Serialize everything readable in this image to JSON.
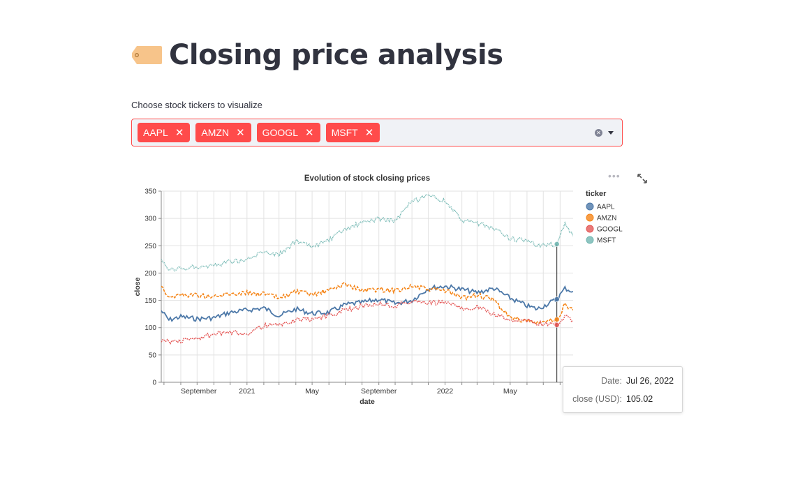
{
  "page": {
    "title": "Closing price analysis"
  },
  "multiselect": {
    "label": "Choose stock tickers to visualize",
    "selected": [
      "AAPL",
      "AMZN",
      "GOOGL",
      "MSFT"
    ],
    "remove_glyph": "✕",
    "clear_glyph": "✕"
  },
  "chart_toolbar": {
    "menu_glyph": "•••"
  },
  "colors": {
    "accent": "#ff4b4b",
    "AAPL": "#4c78a8",
    "AMZN": "#f58518",
    "GOOGL": "#e45756",
    "MSFT": "#72b7b2"
  },
  "tooltip": {
    "date_label": "Date:",
    "date_value": "Jul 26, 2022",
    "value_label": "close (USD):",
    "value_value": "105.02"
  },
  "chart_data": {
    "type": "line",
    "title": "Evolution of stock closing prices",
    "xlabel": "date",
    "ylabel": "close",
    "xlim": [
      "2020-07-27",
      "2022-08-25"
    ],
    "ylim": [
      0,
      350
    ],
    "yticks": [
      0,
      50,
      100,
      150,
      200,
      250,
      300,
      350
    ],
    "xticks": [
      {
        "date": "2020-09-01",
        "label": "September"
      },
      {
        "date": "2021-01-01",
        "label": "2021"
      },
      {
        "date": "2021-05-01",
        "label": "May"
      },
      {
        "date": "2021-09-01",
        "label": "September"
      },
      {
        "date": "2022-01-01",
        "label": "2022"
      },
      {
        "date": "2022-05-01",
        "label": "May"
      }
    ],
    "grid": true,
    "legend": {
      "title": "ticker",
      "placement": "right"
    },
    "rule_date": "2022-07-26",
    "series": [
      {
        "name": "AAPL",
        "dash": "solid",
        "rule_value": 152,
        "points": [
          [
            "2020-07-27",
            131
          ],
          [
            "2020-08-10",
            114
          ],
          [
            "2020-09-01",
            120
          ],
          [
            "2020-10-01",
            116
          ],
          [
            "2020-11-01",
            118
          ],
          [
            "2020-12-01",
            128
          ],
          [
            "2021-01-01",
            132
          ],
          [
            "2021-02-01",
            136
          ],
          [
            "2021-03-01",
            122
          ],
          [
            "2021-04-01",
            134
          ],
          [
            "2021-05-01",
            126
          ],
          [
            "2021-06-01",
            128
          ],
          [
            "2021-07-01",
            142
          ],
          [
            "2021-08-01",
            146
          ],
          [
            "2021-09-01",
            152
          ],
          [
            "2021-10-01",
            144
          ],
          [
            "2021-11-01",
            150
          ],
          [
            "2021-12-01",
            172
          ],
          [
            "2022-01-01",
            176
          ],
          [
            "2022-02-01",
            170
          ],
          [
            "2022-03-01",
            164
          ],
          [
            "2022-04-01",
            172
          ],
          [
            "2022-05-01",
            154
          ],
          [
            "2022-06-01",
            140
          ],
          [
            "2022-06-20",
            134
          ],
          [
            "2022-07-26",
            152
          ],
          [
            "2022-08-10",
            172
          ],
          [
            "2022-08-25",
            166
          ]
        ]
      },
      {
        "name": "AMZN",
        "dash": "dashed",
        "rule_value": 115,
        "points": [
          [
            "2020-07-27",
            178
          ],
          [
            "2020-08-10",
            156
          ],
          [
            "2020-09-01",
            160
          ],
          [
            "2020-10-01",
            160
          ],
          [
            "2020-11-01",
            156
          ],
          [
            "2020-12-01",
            162
          ],
          [
            "2021-01-01",
            164
          ],
          [
            "2021-02-01",
            162
          ],
          [
            "2021-03-01",
            154
          ],
          [
            "2021-04-01",
            166
          ],
          [
            "2021-05-01",
            160
          ],
          [
            "2021-06-01",
            168
          ],
          [
            "2021-07-01",
            180
          ],
          [
            "2021-08-01",
            168
          ],
          [
            "2021-09-01",
            170
          ],
          [
            "2021-10-01",
            168
          ],
          [
            "2021-11-01",
            176
          ],
          [
            "2021-12-01",
            170
          ],
          [
            "2022-01-01",
            168
          ],
          [
            "2022-02-01",
            154
          ],
          [
            "2022-03-01",
            160
          ],
          [
            "2022-04-01",
            150
          ],
          [
            "2022-05-01",
            118
          ],
          [
            "2022-06-01",
            112
          ],
          [
            "2022-06-20",
            108
          ],
          [
            "2022-07-26",
            115
          ],
          [
            "2022-08-10",
            142
          ],
          [
            "2022-08-25",
            132
          ]
        ]
      },
      {
        "name": "GOOGL",
        "dash": "dotted",
        "rule_value": 105.02,
        "points": [
          [
            "2020-07-27",
            78
          ],
          [
            "2020-08-10",
            74
          ],
          [
            "2020-09-01",
            76
          ],
          [
            "2020-10-01",
            80
          ],
          [
            "2020-11-01",
            88
          ],
          [
            "2020-12-01",
            90
          ],
          [
            "2021-01-01",
            90
          ],
          [
            "2021-02-01",
            104
          ],
          [
            "2021-03-01",
            104
          ],
          [
            "2021-04-01",
            114
          ],
          [
            "2021-05-01",
            116
          ],
          [
            "2021-06-01",
            122
          ],
          [
            "2021-07-01",
            132
          ],
          [
            "2021-08-01",
            140
          ],
          [
            "2021-09-01",
            144
          ],
          [
            "2021-10-01",
            140
          ],
          [
            "2021-11-01",
            148
          ],
          [
            "2021-12-01",
            146
          ],
          [
            "2022-01-01",
            146
          ],
          [
            "2022-02-01",
            136
          ],
          [
            "2022-03-01",
            138
          ],
          [
            "2022-04-01",
            124
          ],
          [
            "2022-05-01",
            114
          ],
          [
            "2022-06-01",
            114
          ],
          [
            "2022-06-20",
            108
          ],
          [
            "2022-07-26",
            105
          ],
          [
            "2022-08-10",
            120
          ],
          [
            "2022-08-25",
            112
          ]
        ]
      },
      {
        "name": "MSFT",
        "dash": "dotted-dense",
        "rule_value": 253,
        "points": [
          [
            "2020-07-27",
            222
          ],
          [
            "2020-08-10",
            204
          ],
          [
            "2020-09-01",
            208
          ],
          [
            "2020-10-01",
            212
          ],
          [
            "2020-11-01",
            214
          ],
          [
            "2020-12-01",
            222
          ],
          [
            "2021-01-01",
            224
          ],
          [
            "2021-02-01",
            240
          ],
          [
            "2021-03-01",
            234
          ],
          [
            "2021-04-01",
            258
          ],
          [
            "2021-05-01",
            248
          ],
          [
            "2021-06-01",
            260
          ],
          [
            "2021-07-01",
            280
          ],
          [
            "2021-08-01",
            292
          ],
          [
            "2021-09-01",
            300
          ],
          [
            "2021-10-01",
            296
          ],
          [
            "2021-11-01",
            330
          ],
          [
            "2021-12-01",
            340
          ],
          [
            "2022-01-01",
            332
          ],
          [
            "2022-02-01",
            296
          ],
          [
            "2022-03-01",
            292
          ],
          [
            "2022-04-01",
            280
          ],
          [
            "2022-05-01",
            264
          ],
          [
            "2022-06-01",
            258
          ],
          [
            "2022-06-20",
            250
          ],
          [
            "2022-07-26",
            253
          ],
          [
            "2022-08-10",
            290
          ],
          [
            "2022-08-25",
            268
          ]
        ]
      }
    ]
  }
}
